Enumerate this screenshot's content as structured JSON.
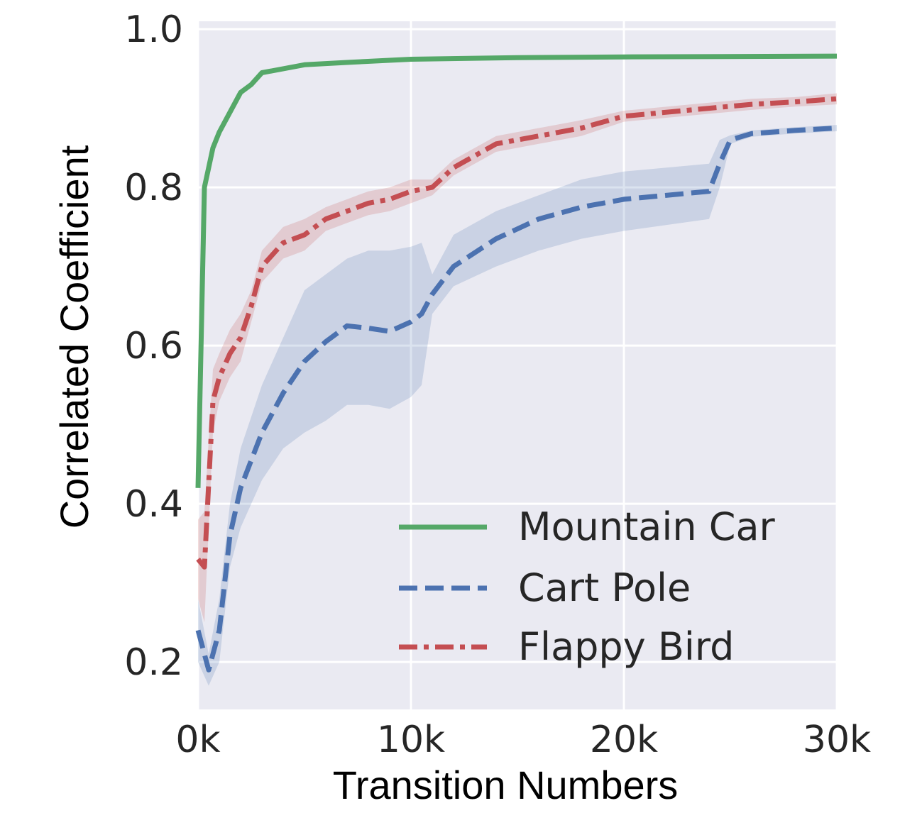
{
  "chart_data": {
    "type": "line",
    "title": "",
    "xlabel": "Transition Numbers",
    "ylabel": "Correlated Coefficient",
    "xlim": [
      0,
      30000
    ],
    "ylim": [
      0.14,
      1.01
    ],
    "grid": true,
    "legend_position": "lower-right",
    "x_ticks": [
      {
        "value": 0,
        "label": "0k"
      },
      {
        "value": 10000,
        "label": "10k"
      },
      {
        "value": 20000,
        "label": "20k"
      },
      {
        "value": 30000,
        "label": "30k"
      }
    ],
    "y_ticks": [
      {
        "value": 0.2,
        "label": "0.2"
      },
      {
        "value": 0.4,
        "label": "0.4"
      },
      {
        "value": 0.6,
        "label": "0.6"
      },
      {
        "value": 0.8,
        "label": "0.8"
      },
      {
        "value": 1.0,
        "label": "1.0"
      }
    ],
    "series": [
      {
        "name": "Mountain Car",
        "color": "#55a868",
        "linestyle": "solid",
        "x": [
          0,
          300,
          700,
          1000,
          1500,
          2000,
          2500,
          3000,
          4000,
          5000,
          7000,
          10000,
          15000,
          20000,
          30000
        ],
        "y": [
          0.42,
          0.8,
          0.85,
          0.87,
          0.895,
          0.92,
          0.93,
          0.945,
          0.95,
          0.955,
          0.958,
          0.962,
          0.964,
          0.965,
          0.966
        ],
        "lower": null,
        "upper": null
      },
      {
        "name": "Cart Pole",
        "color": "#4c72b0",
        "linestyle": "dashed",
        "x": [
          0,
          500,
          1000,
          1500,
          2000,
          3000,
          4000,
          5000,
          6000,
          7000,
          8000,
          9000,
          10000,
          10500,
          11000,
          12000,
          14000,
          16000,
          18000,
          20000,
          24000,
          24500,
          25000,
          26000,
          28000,
          30000
        ],
        "y": [
          0.24,
          0.19,
          0.24,
          0.36,
          0.42,
          0.49,
          0.54,
          0.58,
          0.605,
          0.625,
          0.622,
          0.618,
          0.63,
          0.64,
          0.665,
          0.7,
          0.735,
          0.76,
          0.775,
          0.785,
          0.795,
          0.83,
          0.86,
          0.868,
          0.872,
          0.875
        ],
        "lower": [
          0.2,
          0.17,
          0.2,
          0.32,
          0.37,
          0.43,
          0.47,
          0.49,
          0.505,
          0.525,
          0.525,
          0.52,
          0.535,
          0.55,
          0.64,
          0.675,
          0.7,
          0.72,
          0.735,
          0.745,
          0.76,
          0.8,
          0.855,
          0.864,
          0.868,
          0.871
        ],
        "upper": [
          0.28,
          0.21,
          0.28,
          0.4,
          0.47,
          0.55,
          0.61,
          0.67,
          0.69,
          0.71,
          0.72,
          0.72,
          0.725,
          0.73,
          0.69,
          0.74,
          0.77,
          0.79,
          0.81,
          0.82,
          0.83,
          0.86,
          0.866,
          0.872,
          0.876,
          0.879
        ]
      },
      {
        "name": "Flappy Bird",
        "color": "#c44e52",
        "linestyle": "dashdot",
        "x": [
          0,
          300,
          700,
          1000,
          1500,
          2000,
          2500,
          3000,
          4000,
          5000,
          6000,
          7000,
          8000,
          9000,
          10000,
          11000,
          12000,
          14000,
          16000,
          18000,
          20000,
          22000,
          24000,
          26000,
          28000,
          30000
        ],
        "y": [
          0.33,
          0.32,
          0.53,
          0.56,
          0.59,
          0.61,
          0.65,
          0.7,
          0.73,
          0.74,
          0.76,
          0.77,
          0.78,
          0.785,
          0.795,
          0.8,
          0.825,
          0.855,
          0.865,
          0.875,
          0.89,
          0.895,
          0.9,
          0.905,
          0.908,
          0.912
        ],
        "lower": [
          0.28,
          0.25,
          0.49,
          0.53,
          0.56,
          0.58,
          0.63,
          0.68,
          0.71,
          0.72,
          0.745,
          0.755,
          0.765,
          0.77,
          0.78,
          0.79,
          0.815,
          0.845,
          0.855,
          0.865,
          0.883,
          0.888,
          0.893,
          0.898,
          0.902,
          0.905
        ],
        "upper": [
          0.38,
          0.39,
          0.57,
          0.59,
          0.62,
          0.64,
          0.67,
          0.72,
          0.75,
          0.76,
          0.775,
          0.785,
          0.795,
          0.8,
          0.81,
          0.81,
          0.835,
          0.865,
          0.875,
          0.885,
          0.897,
          0.902,
          0.907,
          0.912,
          0.914,
          0.919
        ]
      }
    ]
  }
}
